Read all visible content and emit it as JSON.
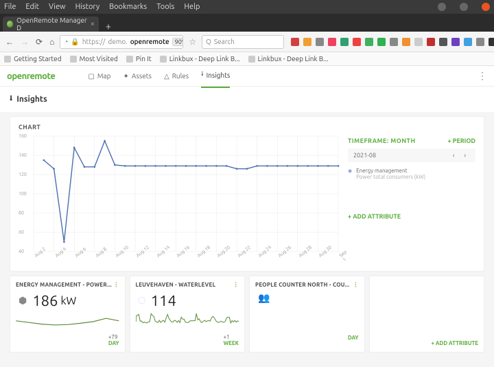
{
  "os": {
    "menus": [
      "File",
      "Edit",
      "View",
      "History",
      "Bookmarks",
      "Tools",
      "Help"
    ]
  },
  "browser": {
    "tab_title": "OpenRemote Manager D",
    "url_prefix": "https://",
    "url_sub": "demo.",
    "url_domain": "openremote",
    "zoom": "90%",
    "search_placeholder": "Search",
    "bookmarks": [
      "Getting Started",
      "Most Visited",
      "Pin It",
      "Linkbux - Deep Link B...",
      "Linkbux - Deep Link B..."
    ],
    "ext_colors": [
      "#d04040",
      "#f0a030",
      "#888888",
      "#f04060",
      "#30a070",
      "#f04040",
      "#40b060",
      "#30b050",
      "#888888",
      "#f09030",
      "#cccccc",
      "#c03030",
      "#555555",
      "#7040c0",
      "#40a0e0",
      "#888888",
      "#333333"
    ]
  },
  "app": {
    "logo": "openremote",
    "tabs": [
      {
        "icon": "▢",
        "label": "Map"
      },
      {
        "icon": "✦",
        "label": "Assets"
      },
      {
        "icon": "△",
        "label": "Rules"
      },
      {
        "icon": "⭭",
        "label": "Insights",
        "active": true
      }
    ],
    "page_title": "Insights"
  },
  "chart": {
    "title": "CHART",
    "timeframe_label": "TIMEFRAME: MONTH",
    "period_label": "+  PERIOD",
    "month": "2021-08",
    "legend_title": "Energy management",
    "legend_sub": "Power total consumers (kW)",
    "add_attr": "+  ADD ATTRIBUTE",
    "line_color": "#4a6fb0",
    "grid_color": "#e8e8e8",
    "y": {
      "min": 40,
      "max": 160,
      "ticks": [
        40,
        60,
        80,
        100,
        120,
        140,
        160
      ]
    },
    "x_labels": [
      "Aug 2",
      "Aug 4",
      "Aug 6",
      "Aug 8",
      "Aug 10",
      "Aug 12",
      "Aug 14",
      "Aug 16",
      "Aug 18",
      "Aug 20",
      "Aug 22",
      "Aug 24",
      "Aug 26",
      "Aug 28",
      "Aug 30",
      "Sep 1"
    ],
    "values": [
      null,
      135,
      126,
      50,
      148,
      128,
      128,
      155,
      130,
      129,
      129,
      129,
      129,
      129,
      129,
      129,
      129,
      129,
      129,
      129,
      126,
      126,
      129,
      129,
      129,
      129,
      129,
      129,
      129,
      129,
      129
    ]
  },
  "small": [
    {
      "title": "ENERGY MANAGEMENT - POWER...",
      "icon": "cube",
      "value": "186",
      "unit": "kW",
      "delta": "+79",
      "range": "DAY",
      "spark_color": "#5a8c3a",
      "spark": [
        0.55,
        0.45,
        0.35,
        0.3,
        0.32,
        0.4,
        0.5,
        0.7,
        0.55
      ]
    },
    {
      "title": "LEUVEHAVEN - WATERLEVEL",
      "icon": "drop",
      "value": "114",
      "unit": "",
      "delta": "+1",
      "range": "WEEK",
      "spark_color": "#5a8c3a",
      "spark_type": "noisy"
    },
    {
      "title": "PEOPLE COUNTER NORTH - COU...",
      "icon": "people",
      "value": "",
      "unit": "",
      "delta": "",
      "range": "DAY",
      "spark_color": "#5a8c3a",
      "spark": []
    },
    {
      "empty": true,
      "add": "+  ADD ATTRIBUTE"
    }
  ]
}
